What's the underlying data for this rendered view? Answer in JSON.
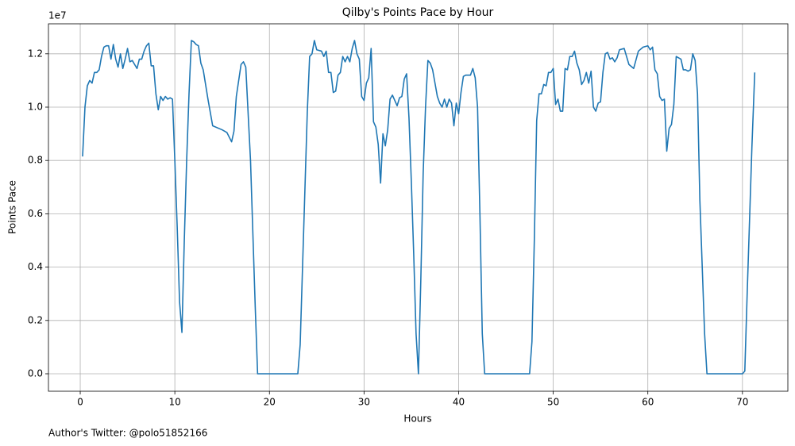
{
  "chart_data": {
    "type": "line",
    "title": "Qilby's Points Pace by Hour",
    "x_label": "Hours",
    "y_label": "Points Pace",
    "y_offset_label": "1e7",
    "footnote": "Author's Twitter: @polo51852166",
    "grid": true,
    "xlim": [
      -3.36,
      74.8
    ],
    "ylim": [
      -0.0655,
      1.3125
    ],
    "xticks": [
      0,
      10,
      20,
      30,
      40,
      50,
      60,
      70
    ],
    "yticks": [
      {
        "value": 0,
        "label": "0.0"
      },
      {
        "value": 0.2,
        "label": "0.2"
      },
      {
        "value": 0.4,
        "label": "0.4"
      },
      {
        "value": 0.6,
        "label": "0.6"
      },
      {
        "value": 0.8,
        "label": "0.8"
      },
      {
        "value": 1.0,
        "label": "1.0"
      },
      {
        "value": 1.2,
        "label": "1.2"
      }
    ],
    "x": [
      0.25,
      0.5,
      0.75,
      1.0,
      1.25,
      1.5,
      1.75,
      2.0,
      2.25,
      2.5,
      2.75,
      3.0,
      3.25,
      3.5,
      3.75,
      4.0,
      4.25,
      4.5,
      4.75,
      5.0,
      5.25,
      5.5,
      5.75,
      6.0,
      6.25,
      6.5,
      6.75,
      7.0,
      7.25,
      7.5,
      7.75,
      8.0,
      8.25,
      8.5,
      8.75,
      9.0,
      9.25,
      9.5,
      9.75,
      10.0,
      10.25,
      10.5,
      10.75,
      11.0,
      11.25,
      11.5,
      11.75,
      12.0,
      12.25,
      12.5,
      12.75,
      13.0,
      13.5,
      14.0,
      15.0,
      15.5,
      16.0,
      16.25,
      16.5,
      17.0,
      17.25,
      17.5,
      18.0,
      18.5,
      18.75,
      20.0,
      21.0,
      22.0,
      23.0,
      23.25,
      23.5,
      24.0,
      24.25,
      24.5,
      24.75,
      25.0,
      25.5,
      25.75,
      26.0,
      26.25,
      26.5,
      26.75,
      27.0,
      27.25,
      27.5,
      27.75,
      28.0,
      28.25,
      28.5,
      28.75,
      29.0,
      29.25,
      29.5,
      29.75,
      30.0,
      30.25,
      30.5,
      30.75,
      31.0,
      31.25,
      31.5,
      31.75,
      32.0,
      32.25,
      32.5,
      32.75,
      33.0,
      33.25,
      33.5,
      33.75,
      34.0,
      34.25,
      34.5,
      34.75,
      35.0,
      35.25,
      35.5,
      35.75,
      36.0,
      36.25,
      36.5,
      36.75,
      37.0,
      37.25,
      37.5,
      37.75,
      38.0,
      38.25,
      38.5,
      38.75,
      39.0,
      39.25,
      39.5,
      39.75,
      40.0,
      40.25,
      40.5,
      40.75,
      41.0,
      41.25,
      41.5,
      41.75,
      42.0,
      42.25,
      42.5,
      42.75,
      45.0,
      47.5,
      47.75,
      48.0,
      48.25,
      48.5,
      48.75,
      49.0,
      49.25,
      49.5,
      49.75,
      50.0,
      50.25,
      50.5,
      50.75,
      51.0,
      51.25,
      51.5,
      51.75,
      52.0,
      52.25,
      52.5,
      52.75,
      53.0,
      53.25,
      53.5,
      53.75,
      54.0,
      54.25,
      54.5,
      54.75,
      55.0,
      55.25,
      55.5,
      55.75,
      56.0,
      56.25,
      56.5,
      56.75,
      57.0,
      57.5,
      58.0,
      58.5,
      59.0,
      59.5,
      60.0,
      60.25,
      60.5,
      60.75,
      61.0,
      61.25,
      61.5,
      61.75,
      62.0,
      62.25,
      62.5,
      62.75,
      63.0,
      63.5,
      63.75,
      64.0,
      64.25,
      64.5,
      64.75,
      65.0,
      65.25,
      65.5,
      66.0,
      66.25,
      68.0,
      70.0,
      70.25,
      70.5,
      71.0,
      71.3
    ],
    "series": [
      {
        "color": "#1f77b4",
        "values": [
          0.815,
          1.0,
          1.08,
          1.1,
          1.09,
          1.13,
          1.13,
          1.14,
          1.19,
          1.225,
          1.23,
          1.23,
          1.18,
          1.235,
          1.18,
          1.15,
          1.2,
          1.145,
          1.18,
          1.22,
          1.17,
          1.175,
          1.16,
          1.145,
          1.18,
          1.18,
          1.21,
          1.23,
          1.24,
          1.155,
          1.155,
          1.05,
          0.99,
          1.04,
          1.025,
          1.04,
          1.03,
          1.035,
          1.03,
          0.8,
          0.55,
          0.27,
          0.155,
          0.5,
          0.8,
          1.05,
          1.25,
          1.245,
          1.235,
          1.23,
          1.165,
          1.14,
          1.03,
          0.93,
          0.915,
          0.905,
          0.87,
          0.91,
          1.04,
          1.16,
          1.17,
          1.15,
          0.8,
          0.25,
          0,
          0,
          0,
          0,
          0,
          0.11,
          0.4,
          0.98,
          1.19,
          1.2,
          1.25,
          1.215,
          1.21,
          1.19,
          1.21,
          1.13,
          1.13,
          1.055,
          1.06,
          1.12,
          1.13,
          1.19,
          1.17,
          1.19,
          1.17,
          1.22,
          1.25,
          1.2,
          1.18,
          1.04,
          1.025,
          1.09,
          1.11,
          1.22,
          0.945,
          0.925,
          0.86,
          0.715,
          0.9,
          0.855,
          0.915,
          1.03,
          1.045,
          1.025,
          1.005,
          1.035,
          1.04,
          1.105,
          1.125,
          0.96,
          0.72,
          0.45,
          0.15,
          0,
          0.35,
          0.75,
          1.0,
          1.175,
          1.165,
          1.14,
          1.09,
          1.04,
          1.015,
          1.0,
          1.03,
          1.0,
          1.03,
          1.015,
          0.93,
          1.015,
          0.975,
          1.055,
          1.115,
          1.12,
          1.12,
          1.12,
          1.145,
          1.11,
          1.0,
          0.6,
          0.15,
          0,
          0,
          0,
          0.12,
          0.5,
          0.95,
          1.05,
          1.05,
          1.085,
          1.08,
          1.13,
          1.13,
          1.145,
          1.01,
          1.03,
          0.985,
          0.985,
          1.145,
          1.14,
          1.19,
          1.19,
          1.21,
          1.165,
          1.14,
          1.085,
          1.1,
          1.13,
          1.09,
          1.135,
          1.0,
          0.985,
          1.015,
          1.02,
          1.13,
          1.2,
          1.205,
          1.18,
          1.185,
          1.17,
          1.185,
          1.215,
          1.22,
          1.16,
          1.145,
          1.21,
          1.225,
          1.23,
          1.215,
          1.225,
          1.14,
          1.125,
          1.04,
          1.025,
          1.03,
          0.835,
          0.92,
          0.935,
          1.01,
          1.19,
          1.18,
          1.14,
          1.14,
          1.135,
          1.14,
          1.2,
          1.175,
          1.05,
          0.65,
          0.15,
          0,
          0,
          0,
          0.01,
          0.3,
          0.85,
          1.13
        ]
      }
    ]
  }
}
